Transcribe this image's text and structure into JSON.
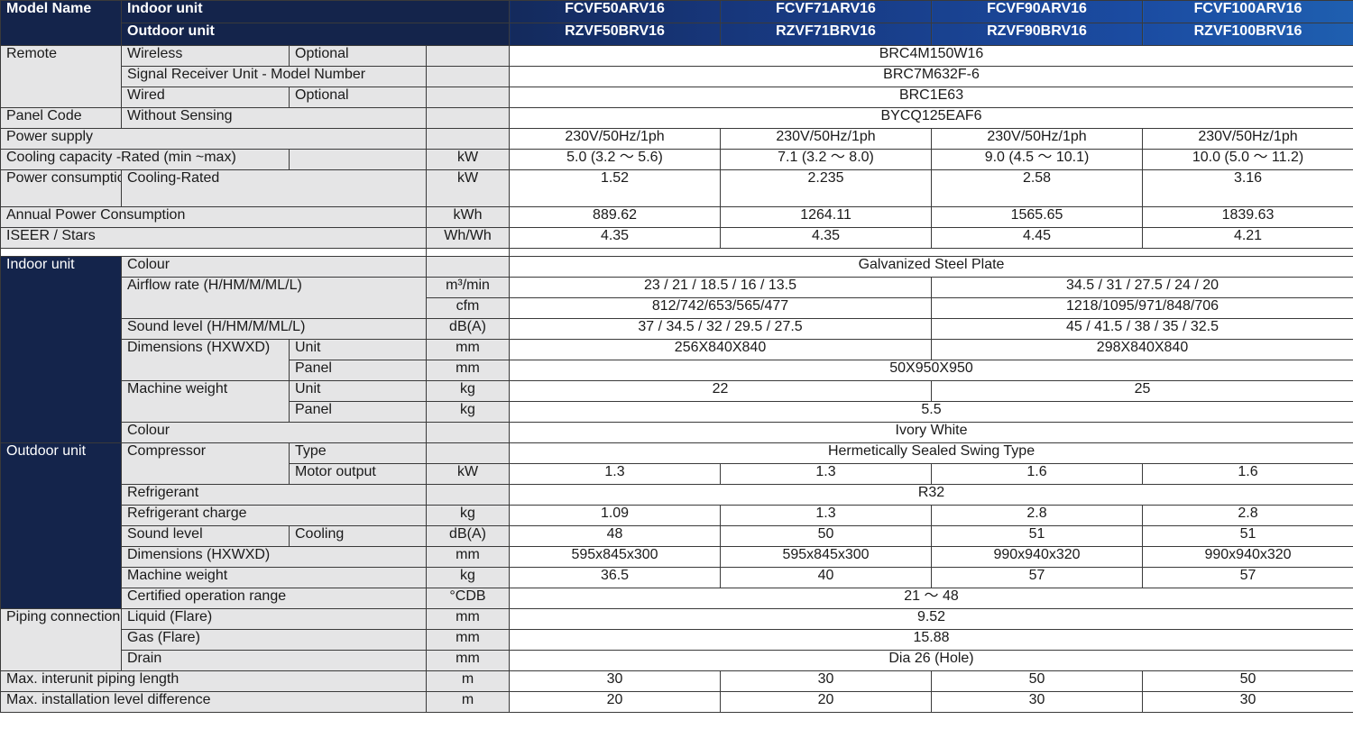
{
  "header": {
    "model_name": "Model Name",
    "indoor_unit": "Indoor unit",
    "outdoor_unit": "Outdoor unit",
    "indoor_models": [
      "FCVF50ARV16",
      "FCVF71ARV16",
      "FCVF90ARV16",
      "FCVF100ARV16"
    ],
    "outdoor_models": [
      "RZVF50BRV16",
      "RZVF71BRV16",
      "RZVF90BRV16",
      "RZVF100BRV16"
    ],
    "colors": {
      "dark_navy": "#14244b",
      "gradient": [
        "#142a5c",
        "#1f5fb0"
      ]
    }
  },
  "remote": {
    "label": "Remote",
    "wireless": "Wireless",
    "optional": "Optional",
    "wireless_value": "BRC4M150W16",
    "signal_receiver": "Signal Receiver Unit - Model Number",
    "signal_receiver_value": "BRC7M632F-6",
    "wired": "Wired",
    "wired_optional": "Optional",
    "wired_value": "BRC1E63"
  },
  "panel_code": {
    "label": "Panel Code",
    "sub": "Without Sensing",
    "value": "BYCQ125EAF6"
  },
  "power_supply": {
    "label": "Power supply",
    "values": [
      "230V/50Hz/1ph",
      "230V/50Hz/1ph",
      "230V/50Hz/1ph",
      "230V/50Hz/1ph"
    ]
  },
  "cooling_capacity": {
    "label": "Cooling capacity -Rated (min ~max)",
    "unit": "kW",
    "values": [
      "5.0 (3.2 ～ 5.6)",
      "7.1 (3.2 ～ 8.0)",
      "9.0 (4.5 ～ 10.1)",
      "10.0 (5.0 ～ 11.2)"
    ]
  },
  "power_consumption": {
    "label": "Power consumption",
    "sub": "Cooling-Rated",
    "unit": "kW",
    "values": [
      "1.52",
      "2.235",
      "2.58",
      "3.16"
    ]
  },
  "annual_power": {
    "label": "Annual Power Consumption",
    "unit": "kWh",
    "values": [
      "889.62",
      "1264.11",
      "1565.65",
      "1839.63"
    ]
  },
  "iseer": {
    "label": "ISEER / Stars",
    "unit": "Wh/Wh",
    "values": [
      "4.35",
      "4.35",
      "4.45",
      "4.21"
    ]
  },
  "indoor": {
    "section": "Indoor unit",
    "colour_label": "Colour",
    "colour_value": "Galvanized Steel Plate",
    "airflow_label": "Airflow rate (H/HM/M/ML/L)",
    "airflow_unit_m3": "m³/min",
    "airflow_m3_a": "23 / 21 / 18.5 / 16 / 13.5",
    "airflow_m3_b": "34.5 / 31 / 27.5 / 24 / 20",
    "airflow_unit_cfm": "cfm",
    "airflow_cfm_a": "812/742/653/565/477",
    "airflow_cfm_b": "1218/1095/971/848/706",
    "sound_label": "Sound level  (H/HM/M/ML/L)",
    "sound_unit": "dB(A)",
    "sound_a": "37 / 34.5 / 32 / 29.5 / 27.5",
    "sound_b": "45 / 41.5 / 38 / 35 / 32.5",
    "dimensions_label": "Dimensions (HXWXD)",
    "unit_label": "Unit",
    "panel_label": "Panel",
    "mm": "mm",
    "dim_unit_a": "256X840X840",
    "dim_unit_b": "298X840X840",
    "dim_panel": "50X950X950",
    "weight_label": "Machine weight",
    "weight_unit_label": "Unit",
    "weight_panel_label": "Panel",
    "kg": "kg",
    "weight_unit_a": "22",
    "weight_unit_b": "25",
    "weight_panel": "5.5",
    "panel_colour_label": "Colour",
    "panel_colour_value": "Ivory White"
  },
  "outdoor": {
    "section": "Outdoor unit",
    "compressor_label": "Compressor",
    "type_label": "Type",
    "type_value": "Hermetically Sealed Swing Type",
    "motor_label": "Motor output",
    "motor_unit": "kW",
    "motor_values": [
      "1.3",
      "1.3",
      "1.6",
      "1.6"
    ],
    "refrigerant_label": "Refrigerant",
    "refrigerant_value": "R32",
    "charge_label": "Refrigerant charge",
    "charge_unit": "kg",
    "charge_values": [
      "1.09",
      "1.3",
      "2.8",
      "2.8"
    ],
    "sound_label": "Sound level",
    "sound_sub": "Cooling",
    "sound_unit": "dB(A)",
    "sound_values": [
      "48",
      "50",
      "51",
      "51"
    ],
    "dim_label": "Dimensions (HXWXD)",
    "dim_unit": "mm",
    "dim_values": [
      "595x845x300",
      "595x845x300",
      "990x940x320",
      "990x940x320"
    ],
    "weight_label": "Machine weight",
    "weight_unit": "kg",
    "weight_values": [
      "36.5",
      "40",
      "57",
      "57"
    ],
    "range_label": "Certified operation range",
    "range_unit": "°CDB",
    "range_value": "21 ～ 48"
  },
  "piping": {
    "section": "Piping connections",
    "liquid_label": "Liquid (Flare)",
    "liquid_unit": "mm",
    "liquid_value": "9.52",
    "gas_label": "Gas (Flare)",
    "gas_unit": "mm",
    "gas_value": "15.88",
    "drain_label": "Drain",
    "drain_unit": "mm",
    "drain_value": "Dia 26 (Hole)"
  },
  "interunit": {
    "label": "Max. interunit piping length",
    "unit": "m",
    "values": [
      "30",
      "30",
      "50",
      "50"
    ]
  },
  "level_diff": {
    "label": "Max. installation level difference",
    "unit": "m",
    "values": [
      "20",
      "20",
      "30",
      "30"
    ]
  }
}
